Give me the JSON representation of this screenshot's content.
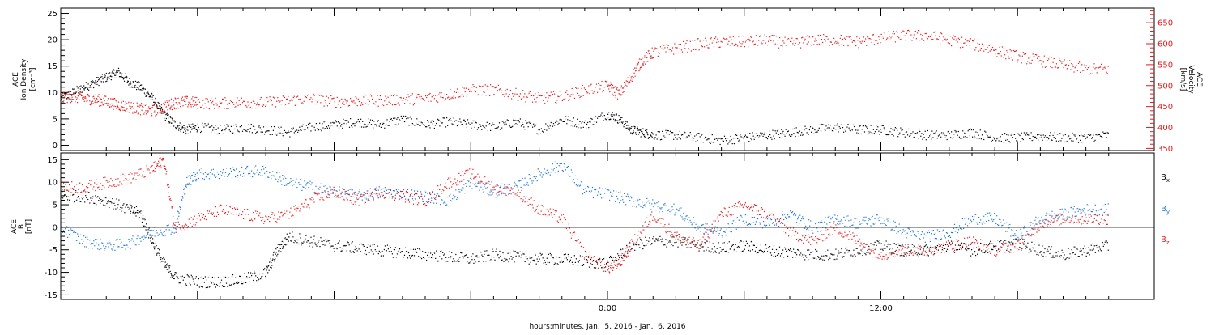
{
  "chart_data": [
    {
      "type": "scatter",
      "panel": "top",
      "ylabel_left": [
        "ACE",
        "Ion Density",
        "[cm⁻³]"
      ],
      "ylabel_right": [
        "ACE",
        "Velocity",
        "[km/s]"
      ],
      "ylim_left": [
        -1,
        26
      ],
      "ylim_right": [
        345,
        685
      ],
      "yticks_left": [
        "0",
        "5",
        "10",
        "15",
        "20",
        "25"
      ],
      "yticks_right": [
        "350",
        "400",
        "450",
        "500",
        "550",
        "600",
        "650"
      ],
      "series": [
        {
          "axis": "left",
          "color": "#000000",
          "points": [
            [
              -24,
              9
            ],
            [
              -23.5,
              10
            ],
            [
              -23,
              11
            ],
            [
              -22.5,
              12
            ],
            [
              -22,
              13
            ],
            [
              -21.5,
              14
            ],
            [
              -21,
              12
            ],
            [
              -20.5,
              11
            ],
            [
              -20,
              9
            ],
            [
              -19.5,
              6
            ],
            [
              -19,
              4
            ],
            [
              -18.5,
              3
            ],
            [
              -18,
              3.5
            ],
            [
              -17,
              3
            ],
            [
              -16,
              3.5
            ],
            [
              -15,
              3
            ],
            [
              -14,
              2.5
            ],
            [
              -13,
              3.5
            ],
            [
              -12,
              4
            ],
            [
              -11,
              4.5
            ],
            [
              -10,
              4
            ],
            [
              -9,
              5
            ],
            [
              -8,
              4
            ],
            [
              -7,
              4.5
            ],
            [
              -6,
              4
            ],
            [
              -5,
              3.5
            ],
            [
              -4,
              4.5
            ],
            [
              -3,
              3
            ],
            [
              -2,
              5
            ],
            [
              -1,
              4
            ],
            [
              0,
              6
            ],
            [
              0.5,
              5
            ],
            [
              1,
              3
            ],
            [
              1.5,
              2.5
            ],
            [
              2,
              2
            ],
            [
              3,
              2
            ],
            [
              4,
              1.5
            ],
            [
              5,
              1
            ],
            [
              6,
              1.5
            ],
            [
              7,
              2
            ],
            [
              8,
              2.5
            ],
            [
              9,
              3
            ],
            [
              10,
              3.5
            ],
            [
              11,
              3
            ],
            [
              12,
              3
            ],
            [
              13,
              2.5
            ],
            [
              14,
              2
            ],
            [
              15,
              2
            ],
            [
              16,
              2.5
            ],
            [
              17,
              1.5
            ],
            [
              18,
              1.5
            ],
            [
              19,
              1.8
            ],
            [
              20,
              1.5
            ],
            [
              21,
              1.5
            ],
            [
              22,
              2
            ]
          ]
        },
        {
          "axis": "right",
          "color": "#e41a1c",
          "points": [
            [
              -24,
              470
            ],
            [
              -23.5,
              475
            ],
            [
              -23,
              470
            ],
            [
              -22.5,
              468
            ],
            [
              -22,
              462
            ],
            [
              -21.5,
              455
            ],
            [
              -21,
              450
            ],
            [
              -20.5,
              445
            ],
            [
              -20,
              440
            ],
            [
              -19.5,
              450
            ],
            [
              -19,
              460
            ],
            [
              -18.5,
              462
            ],
            [
              -18,
              460
            ],
            [
              -17,
              458
            ],
            [
              -16,
              462
            ],
            [
              -15,
              460
            ],
            [
              -14,
              465
            ],
            [
              -13,
              470
            ],
            [
              -12,
              462
            ],
            [
              -11,
              465
            ],
            [
              -10,
              465
            ],
            [
              -9,
              468
            ],
            [
              -8,
              470
            ],
            [
              -7,
              480
            ],
            [
              -6,
              490
            ],
            [
              -5,
              490
            ],
            [
              -4,
              480
            ],
            [
              -3,
              470
            ],
            [
              -2,
              475
            ],
            [
              -1,
              490
            ],
            [
              0,
              500
            ],
            [
              0.5,
              480
            ],
            [
              1,
              520
            ],
            [
              1.5,
              560
            ],
            [
              2,
              580
            ],
            [
              3,
              590
            ],
            [
              4,
              600
            ],
            [
              5,
              605
            ],
            [
              6,
              605
            ],
            [
              7,
              610
            ],
            [
              8,
              600
            ],
            [
              9,
              610
            ],
            [
              10,
              610
            ],
            [
              11,
              605
            ],
            [
              12,
              615
            ],
            [
              13,
              620
            ],
            [
              14,
              620
            ],
            [
              15,
              610
            ],
            [
              16,
              600
            ],
            [
              17,
              585
            ],
            [
              18,
              570
            ],
            [
              19,
              560
            ],
            [
              20,
              550
            ],
            [
              21,
              540
            ],
            [
              22,
              540
            ]
          ]
        }
      ]
    },
    {
      "type": "scatter",
      "panel": "bottom",
      "ylabel_left": [
        "ACE",
        "B",
        "[nT]"
      ],
      "ylim_left": [
        -16,
        16.5
      ],
      "yticks_left": [
        "15",
        "10",
        "5",
        "0",
        "-5",
        "-10",
        "-15"
      ],
      "x_ticks": [
        {
          "x": 0,
          "label": "0:00"
        },
        {
          "x": 12,
          "label": "12:00"
        }
      ],
      "xlim": [
        -24,
        24
      ],
      "xlabel": "hours:minutes, Jan.  5, 2016 - Jan.  6, 2016",
      "legend": [
        {
          "base": "B",
          "sub": "x",
          "color": "#000000"
        },
        {
          "base": "B",
          "sub": "y",
          "color": "#1f78d4"
        },
        {
          "base": "B",
          "sub": "z",
          "color": "#e41a1c"
        }
      ],
      "series": [
        {
          "color": "#000000",
          "points": [
            [
              -24,
              7
            ],
            [
              -23,
              7
            ],
            [
              -22,
              6
            ],
            [
              -21,
              4
            ],
            [
              -20.5,
              3
            ],
            [
              -20,
              -3
            ],
            [
              -19.5,
              -8
            ],
            [
              -19,
              -11
            ],
            [
              -18,
              -12
            ],
            [
              -17,
              -12
            ],
            [
              -16,
              -11.5
            ],
            [
              -15,
              -10
            ],
            [
              -14.5,
              -5
            ],
            [
              -14,
              -2
            ],
            [
              -13,
              -3
            ],
            [
              -12,
              -4
            ],
            [
              -11,
              -4.5
            ],
            [
              -10,
              -5
            ],
            [
              -9,
              -5.5
            ],
            [
              -8,
              -6
            ],
            [
              -7,
              -6.5
            ],
            [
              -6,
              -7
            ],
            [
              -5,
              -6
            ],
            [
              -4,
              -6.5
            ],
            [
              -3,
              -7
            ],
            [
              -2,
              -7
            ],
            [
              -1,
              -7.5
            ],
            [
              0,
              -8
            ],
            [
              1,
              -4
            ],
            [
              2,
              -3
            ],
            [
              3,
              -3
            ],
            [
              4,
              -4
            ],
            [
              5,
              -4.5
            ],
            [
              6,
              -4
            ],
            [
              7,
              -5
            ],
            [
              8,
              -5.5
            ],
            [
              9,
              -6
            ],
            [
              10,
              -6
            ],
            [
              11,
              -5
            ],
            [
              12,
              -4
            ],
            [
              13,
              -5
            ],
            [
              14,
              -5
            ],
            [
              15,
              -4
            ],
            [
              16,
              -5
            ],
            [
              17,
              -4
            ],
            [
              18,
              -3.5
            ],
            [
              19,
              -5
            ],
            [
              20,
              -6
            ],
            [
              21,
              -5
            ],
            [
              22,
              -4
            ]
          ]
        },
        {
          "color": "#1f78d4",
          "points": [
            [
              -24,
              0
            ],
            [
              -23,
              -3
            ],
            [
              -22,
              -4
            ],
            [
              -21,
              -3.5
            ],
            [
              -20,
              -1
            ],
            [
              -19,
              0
            ],
            [
              -18.5,
              10
            ],
            [
              -18,
              12
            ],
            [
              -17,
              12
            ],
            [
              -16,
              12.5
            ],
            [
              -15,
              12.5
            ],
            [
              -14,
              10
            ],
            [
              -13,
              9
            ],
            [
              -12,
              8
            ],
            [
              -11,
              7
            ],
            [
              -10,
              8
            ],
            [
              -9,
              7.5
            ],
            [
              -8,
              7
            ],
            [
              -7,
              6
            ],
            [
              -6,
              10
            ],
            [
              -5,
              8
            ],
            [
              -4,
              9
            ],
            [
              -3,
              12
            ],
            [
              -2,
              14
            ],
            [
              -1,
              8
            ],
            [
              0,
              7.5
            ],
            [
              1,
              6
            ],
            [
              2,
              5
            ],
            [
              3,
              4
            ],
            [
              4,
              0
            ],
            [
              5,
              -1
            ],
            [
              6,
              2
            ],
            [
              7,
              1
            ],
            [
              8,
              3
            ],
            [
              9,
              0
            ],
            [
              10,
              2
            ],
            [
              11,
              1
            ],
            [
              12,
              2
            ],
            [
              13,
              -1
            ],
            [
              14,
              -2
            ],
            [
              15,
              -1
            ],
            [
              16,
              2
            ],
            [
              17,
              2
            ],
            [
              18,
              -2
            ],
            [
              19,
              2
            ],
            [
              20,
              3
            ],
            [
              21,
              4
            ],
            [
              22,
              4
            ]
          ]
        },
        {
          "color": "#e41a1c",
          "points": [
            [
              -24,
              9
            ],
            [
              -23,
              9
            ],
            [
              -22,
              10
            ],
            [
              -21,
              11
            ],
            [
              -20,
              13
            ],
            [
              -19.5,
              15
            ],
            [
              -19,
              0
            ],
            [
              -18,
              2
            ],
            [
              -17,
              4
            ],
            [
              -16,
              3
            ],
            [
              -15,
              2
            ],
            [
              -14,
              3
            ],
            [
              -13,
              6
            ],
            [
              -12,
              8
            ],
            [
              -11,
              6
            ],
            [
              -10,
              8
            ],
            [
              -9,
              7
            ],
            [
              -8,
              6
            ],
            [
              -7,
              10
            ],
            [
              -6,
              12
            ],
            [
              -5,
              9
            ],
            [
              -4,
              8
            ],
            [
              -3,
              4
            ],
            [
              -2,
              2
            ],
            [
              -1,
              -6
            ],
            [
              0,
              -9
            ],
            [
              0.5,
              -8
            ],
            [
              1,
              -4
            ],
            [
              2,
              3
            ],
            [
              3,
              -2
            ],
            [
              4,
              -4
            ],
            [
              5,
              3
            ],
            [
              6,
              5
            ],
            [
              7,
              3
            ],
            [
              8,
              -1
            ],
            [
              9,
              -3
            ],
            [
              10,
              0
            ],
            [
              11,
              -3
            ],
            [
              12,
              -6
            ],
            [
              13,
              -5
            ],
            [
              14,
              -5
            ],
            [
              15,
              -4
            ],
            [
              16,
              -3
            ],
            [
              17,
              -5
            ],
            [
              18,
              -4
            ],
            [
              19,
              1
            ],
            [
              20,
              2
            ],
            [
              21,
              2
            ],
            [
              22,
              2
            ]
          ]
        }
      ]
    }
  ]
}
